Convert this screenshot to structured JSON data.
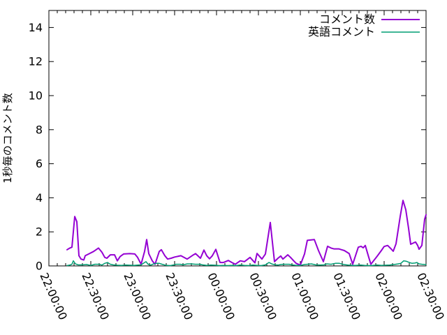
{
  "colors": {
    "background": "#ffffff",
    "axis": "#000000",
    "text": "#000000"
  },
  "chart_data": {
    "type": "line",
    "title": "",
    "xlabel": "",
    "ylabel": "1秒毎のコメント数",
    "ylim": [
      0,
      15
    ],
    "yticks": [
      0,
      2,
      4,
      6,
      8,
      10,
      12,
      14
    ],
    "x_minutes_range": [
      0,
      270
    ],
    "xtick_interval_min": 30,
    "x_minor_tick_interval_min": 6,
    "xtick_labels": [
      "22:00:00",
      "22:30:00",
      "23:00:00",
      "23:30:00",
      "00:00:00",
      "00:30:00",
      "01:00:00",
      "01:30:00",
      "02:00:00",
      "02:30:00"
    ],
    "grid": false,
    "legend_position": "top-right-inside",
    "series": [
      {
        "name": "コメント数",
        "color": "#9400d3",
        "width": 2,
        "points": [
          [
            13,
            0.95
          ],
          [
            15,
            1.05
          ],
          [
            16.5,
            1.1
          ],
          [
            18.5,
            2.9
          ],
          [
            19.5,
            2.7
          ],
          [
            20,
            2.6
          ],
          [
            21.5,
            0.6
          ],
          [
            23,
            0.4
          ],
          [
            25,
            0.35
          ],
          [
            26,
            0.6
          ],
          [
            29,
            0.72
          ],
          [
            32,
            0.85
          ],
          [
            35.5,
            1.05
          ],
          [
            38,
            0.8
          ],
          [
            40,
            0.5
          ],
          [
            41.5,
            0.45
          ],
          [
            44,
            0.65
          ],
          [
            47,
            0.65
          ],
          [
            49,
            0.3
          ],
          [
            51,
            0.55
          ],
          [
            53.5,
            0.7
          ],
          [
            58,
            0.72
          ],
          [
            61.5,
            0.7
          ],
          [
            63.5,
            0.5
          ],
          [
            66,
            0.1
          ],
          [
            68.5,
            0.85
          ],
          [
            70,
            1.55
          ],
          [
            71.5,
            0.72
          ],
          [
            74,
            0.3
          ],
          [
            76,
            0.1
          ],
          [
            79,
            0.85
          ],
          [
            80.5,
            0.95
          ],
          [
            83,
            0.6
          ],
          [
            85,
            0.4
          ],
          [
            87.5,
            0.45
          ],
          [
            90,
            0.52
          ],
          [
            94.5,
            0.6
          ],
          [
            99,
            0.4
          ],
          [
            103.5,
            0.65
          ],
          [
            105,
            0.72
          ],
          [
            108.5,
            0.45
          ],
          [
            111,
            0.93
          ],
          [
            113,
            0.6
          ],
          [
            115,
            0.42
          ],
          [
            117,
            0.6
          ],
          [
            119.5,
            0.97
          ],
          [
            122.5,
            0.2
          ],
          [
            125,
            0.2
          ],
          [
            128.5,
            0.32
          ],
          [
            131,
            0.2
          ],
          [
            133.5,
            0.1
          ],
          [
            137,
            0.3
          ],
          [
            140,
            0.25
          ],
          [
            144,
            0.5
          ],
          [
            147.5,
            0.18
          ],
          [
            149,
            0.73
          ],
          [
            152.5,
            0.4
          ],
          [
            155,
            0.7
          ],
          [
            158.5,
            2.55
          ],
          [
            161.5,
            0.25
          ],
          [
            164,
            0.45
          ],
          [
            166,
            0.58
          ],
          [
            167.5,
            0.4
          ],
          [
            171,
            0.65
          ],
          [
            173,
            0.5
          ],
          [
            175,
            0.32
          ],
          [
            177,
            0.15
          ],
          [
            180,
            0.05
          ],
          [
            183,
            0.7
          ],
          [
            185,
            1.5
          ],
          [
            190,
            1.55
          ],
          [
            193,
            0.9
          ],
          [
            196.5,
            0.25
          ],
          [
            199.5,
            1.15
          ],
          [
            202,
            1.05
          ],
          [
            204,
            1.0
          ],
          [
            207.5,
            1.0
          ],
          [
            209.5,
            0.95
          ],
          [
            211.5,
            0.9
          ],
          [
            215,
            0.72
          ],
          [
            217.5,
            0.1
          ],
          [
            221.5,
            1.1
          ],
          [
            223.5,
            1.15
          ],
          [
            225,
            1.06
          ],
          [
            226.5,
            1.2
          ],
          [
            229,
            0.5
          ],
          [
            230.5,
            0.1
          ],
          [
            235,
            0.57
          ],
          [
            238,
            0.9
          ],
          [
            240,
            1.14
          ],
          [
            242.5,
            1.2
          ],
          [
            245,
            1.0
          ],
          [
            246.5,
            0.86
          ],
          [
            248.5,
            1.3
          ],
          [
            251.5,
            2.9
          ],
          [
            253.5,
            3.85
          ],
          [
            255.5,
            3.3
          ],
          [
            257.5,
            2.2
          ],
          [
            259,
            1.27
          ],
          [
            261,
            1.35
          ],
          [
            262.5,
            1.4
          ],
          [
            264,
            1.2
          ],
          [
            265,
            0.98
          ],
          [
            267,
            1.2
          ],
          [
            269,
            2.75
          ],
          [
            270,
            3.0
          ]
        ]
      },
      {
        "name": "英語コメント",
        "color": "#009e73",
        "width": 1.5,
        "points": [
          [
            13,
            0.02
          ],
          [
            15,
            0.05
          ],
          [
            16.5,
            0.1
          ],
          [
            17.5,
            0.3
          ],
          [
            19,
            0.12
          ],
          [
            21,
            0.06
          ],
          [
            24,
            0.06
          ],
          [
            27,
            0.08
          ],
          [
            30,
            0.03
          ],
          [
            33,
            0.1
          ],
          [
            36,
            0.1
          ],
          [
            38,
            0.05
          ],
          [
            40,
            0.15
          ],
          [
            42,
            0.2
          ],
          [
            44,
            0.1
          ],
          [
            46,
            0.06
          ],
          [
            49,
            0.04
          ],
          [
            52,
            0.03
          ],
          [
            55,
            0.05
          ],
          [
            58,
            0.04
          ],
          [
            61,
            0.03
          ],
          [
            64,
            0.05
          ],
          [
            66,
            0.06
          ],
          [
            68.5,
            0.2
          ],
          [
            69.5,
            0.25
          ],
          [
            71,
            0.1
          ],
          [
            73,
            0.05
          ],
          [
            75,
            0.12
          ],
          [
            77,
            0.15
          ],
          [
            79,
            0.15
          ],
          [
            81,
            0.1
          ],
          [
            84,
            0.03
          ],
          [
            87,
            0.02
          ],
          [
            89,
            0.05
          ],
          [
            91,
            0.1
          ],
          [
            94,
            0.1
          ],
          [
            96,
            0.06
          ],
          [
            99,
            0.12
          ],
          [
            102,
            0.12
          ],
          [
            105,
            0.1
          ],
          [
            108,
            0.1
          ],
          [
            110,
            0.06
          ],
          [
            113,
            0.03
          ],
          [
            116,
            0.05
          ],
          [
            119,
            0.04
          ],
          [
            122,
            0.02
          ],
          [
            125,
            0.03
          ],
          [
            128,
            0.02
          ],
          [
            131,
            0.03
          ],
          [
            134,
            0.02
          ],
          [
            137,
            0.05
          ],
          [
            140,
            0.03
          ],
          [
            143,
            0.02
          ],
          [
            146,
            0.05
          ],
          [
            149,
            0.03
          ],
          [
            152,
            0.02
          ],
          [
            155,
            0.06
          ],
          [
            157.5,
            0.2
          ],
          [
            159.5,
            0.12
          ],
          [
            162,
            0.06
          ],
          [
            164,
            0.05
          ],
          [
            166,
            0.08
          ],
          [
            168,
            0.1
          ],
          [
            170,
            0.1
          ],
          [
            172,
            0.1
          ],
          [
            174,
            0.06
          ],
          [
            177,
            0.03
          ],
          [
            180,
            0.03
          ],
          [
            183,
            0.08
          ],
          [
            185,
            0.1
          ],
          [
            188,
            0.12
          ],
          [
            191,
            0.06
          ],
          [
            194,
            0.05
          ],
          [
            197,
            0.06
          ],
          [
            199,
            0.12
          ],
          [
            202,
            0.1
          ],
          [
            205,
            0.15
          ],
          [
            208,
            0.15
          ],
          [
            211,
            0.08
          ],
          [
            214,
            0.05
          ],
          [
            217,
            0.03
          ],
          [
            220,
            0.03
          ],
          [
            223,
            0.05
          ],
          [
            226,
            0.03
          ],
          [
            229,
            0.02
          ],
          [
            232,
            0.03
          ],
          [
            235,
            0.05
          ],
          [
            238,
            0.03
          ],
          [
            241,
            0.04
          ],
          [
            244,
            0.05
          ],
          [
            247,
            0.08
          ],
          [
            250,
            0.12
          ],
          [
            252,
            0.15
          ],
          [
            254,
            0.3
          ],
          [
            256,
            0.27
          ],
          [
            258,
            0.2
          ],
          [
            260,
            0.15
          ],
          [
            262,
            0.17
          ],
          [
            263.5,
            0.2
          ],
          [
            265,
            0.12
          ],
          [
            267,
            0.1
          ],
          [
            269,
            0.08
          ],
          [
            270,
            0.08
          ]
        ]
      }
    ]
  }
}
